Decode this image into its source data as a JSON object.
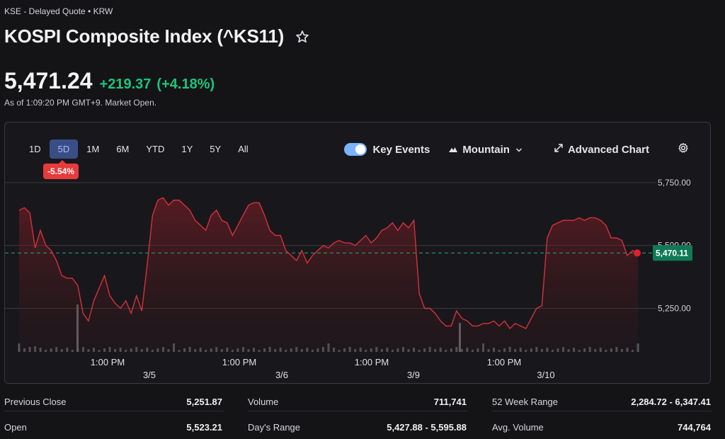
{
  "header": {
    "exchange": "KSE - Delayed Quote • KRW",
    "title": "KOSPI Composite Index (^KS11)",
    "price": "5,471.24",
    "change": "+219.37",
    "change_pct": "(+4.18%)",
    "as_of": "As of 1:09:20 PM GMT+9. Market Open."
  },
  "ranges": {
    "items": [
      "1D",
      "5D",
      "1M",
      "6M",
      "YTD",
      "1Y",
      "5Y",
      "All"
    ],
    "active": "5D",
    "active_change": "-5.54%"
  },
  "tools": {
    "key_events": "Key Events",
    "key_events_on": true,
    "chart_type": "Mountain",
    "advanced": "Advanced Chart"
  },
  "colors": {
    "up": "#1ec47a",
    "down": "#d6313a",
    "badge": "#e83a3a",
    "active_range": "#3a4e86",
    "last_price_tag": "#0f7a55"
  },
  "chart_data": {
    "type": "area",
    "series": [
      {
        "values": [
          5640,
          5650,
          5630,
          5490,
          5560,
          5500,
          5480,
          5440,
          5380,
          5370,
          5370,
          5340,
          5230,
          5200,
          5280,
          5330,
          5380,
          5300,
          5270,
          5250,
          5280,
          5230,
          5300,
          5240,
          5420,
          5620,
          5680,
          5690,
          5660,
          5680,
          5680,
          5660,
          5640,
          5600,
          5580,
          5560,
          5620,
          5640,
          5600,
          5590,
          5540,
          5580,
          5620,
          5660,
          5670,
          5670,
          5620,
          5560,
          5540,
          5540,
          5480,
          5460,
          5440,
          5480,
          5430,
          5460,
          5480,
          5500,
          5490,
          5510,
          5520,
          5510,
          5510,
          5500,
          5520,
          5540,
          5510,
          5530,
          5560,
          5570,
          5590,
          5560,
          5590,
          5570,
          5600,
          5310,
          5250,
          5250,
          5230,
          5200,
          5180,
          5180,
          5240,
          5210,
          5200,
          5180,
          5180,
          5190,
          5190,
          5200,
          5180,
          5200,
          5170,
          5190,
          5180,
          5170,
          5210,
          5250,
          5260,
          5530,
          5580,
          5590,
          5600,
          5600,
          5600,
          5610,
          5600,
          5610,
          5610,
          5600,
          5580,
          5530,
          5530,
          5520,
          5460,
          5480,
          5470
        ]
      }
    ],
    "day_labels": [
      "3/5",
      "3/6",
      "3/9",
      "3/10"
    ],
    "time_labels": [
      "1:00 PM",
      "1:00 PM",
      "1:00 PM",
      "1:00 PM"
    ],
    "y_ticks": [
      "5,750.00",
      "5,250.00"
    ],
    "y_tick_values": [
      5750,
      5250
    ],
    "obscured_tick_value": 5500,
    "obscured_tick_text": "5,500.00",
    "ylim": [
      5060,
      5820
    ],
    "previous_close": 5470.11,
    "last_label": "5,470.11",
    "volume_spikes": [
      {
        "day": 0,
        "where": "after-1pm"
      },
      {
        "day": 3,
        "where": "day-start"
      }
    ]
  },
  "stats": [
    {
      "label": "Previous Close",
      "value": "5,251.87"
    },
    {
      "label": "Open",
      "value": "5,523.21"
    },
    {
      "label": "Volume",
      "value": "711,741"
    },
    {
      "label": "Day's Range",
      "value": "5,427.88 - 5,595.88"
    },
    {
      "label": "52 Week Range",
      "value": "2,284.72 - 6,347.41"
    },
    {
      "label": "Avg. Volume",
      "value": "744,764"
    }
  ]
}
